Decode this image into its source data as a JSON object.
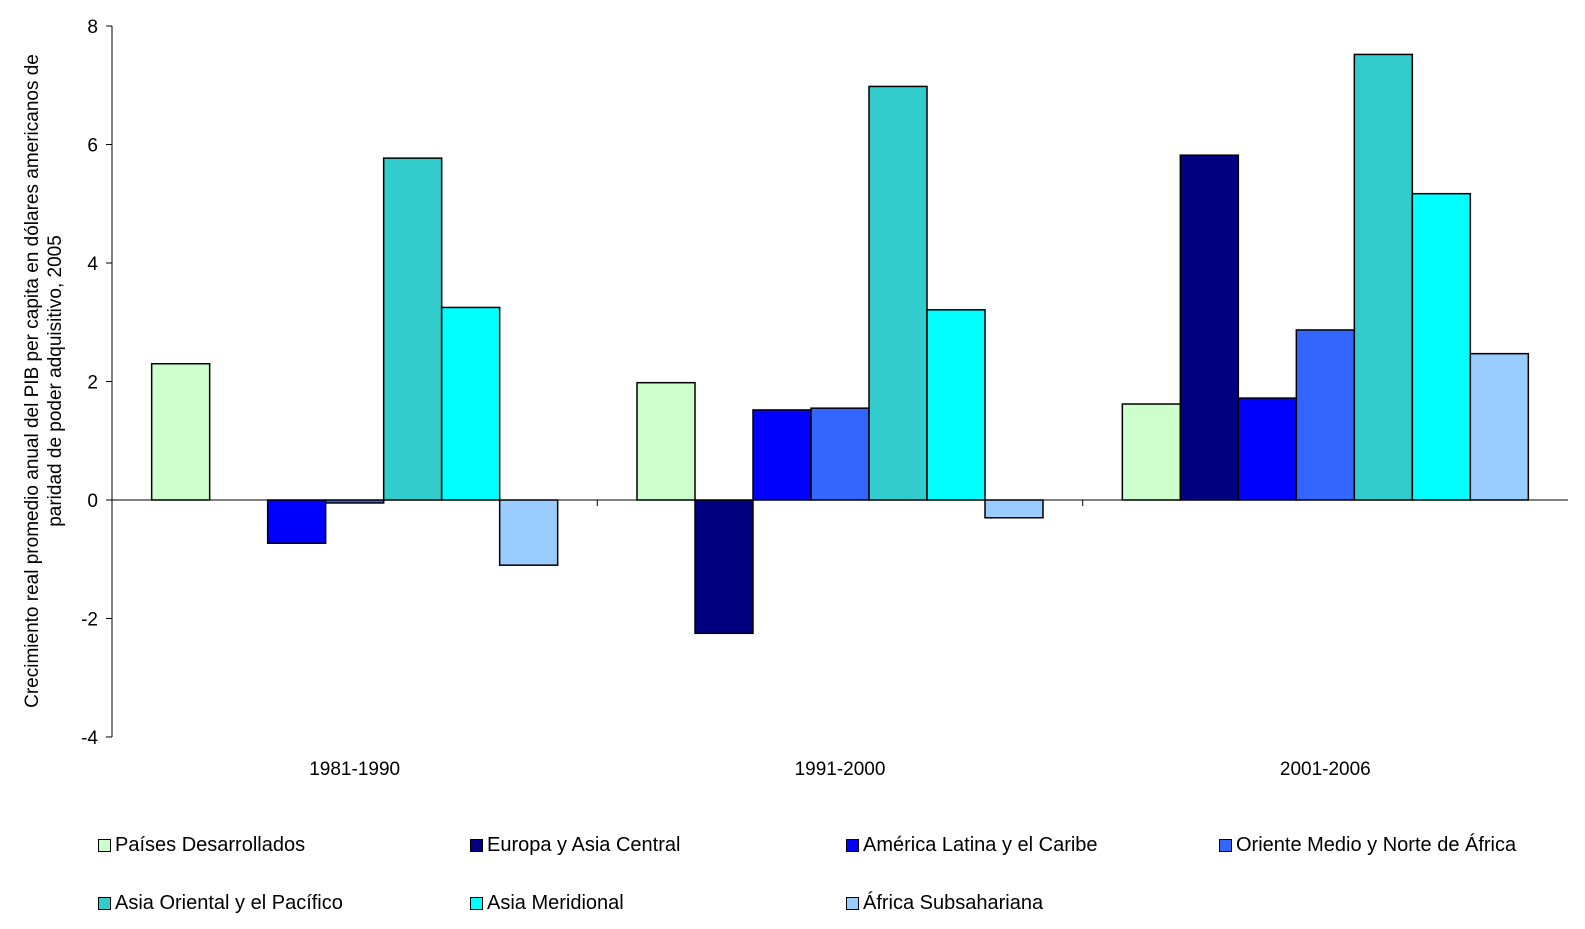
{
  "chart_data": {
    "type": "bar",
    "title": "",
    "xlabel": "",
    "ylabel_lines": [
      "Crecimiento real promedio anual del PIB per capita en dólares americanos de",
      "paridad de poder adquisitivo, 2005"
    ],
    "ylim": [
      -4,
      8
    ],
    "yticks": [
      -4,
      -2,
      0,
      2,
      4,
      6,
      8
    ],
    "grid": false,
    "legend_position": "bottom",
    "categories": [
      "1981-1990",
      "1991-2000",
      "2001-2006"
    ],
    "series": [
      {
        "name": "Países Desarrollados",
        "color": "#CCFFCC",
        "values": [
          2.3,
          1.98,
          1.62
        ]
      },
      {
        "name": "Europa y Asia Central",
        "color": "#000080",
        "values": [
          null,
          -2.25,
          5.82
        ]
      },
      {
        "name": "América Latina y el Caribe",
        "color": "#0000FF",
        "values": [
          -0.73,
          1.52,
          1.72
        ]
      },
      {
        "name": "Oriente Medio y Norte de África",
        "color": "#3366FF",
        "values": [
          -0.05,
          1.55,
          2.87
        ]
      },
      {
        "name": "Asia Oriental y el Pacífico",
        "color": "#33CCCC",
        "values": [
          5.77,
          6.98,
          7.52
        ]
      },
      {
        "name": "Asia Meridional",
        "color": "#00FFFF",
        "values": [
          3.25,
          3.21,
          5.17
        ]
      },
      {
        "name": "África Subsahariana",
        "color": "#99CCFF",
        "values": [
          -1.1,
          -0.3,
          2.47
        ]
      }
    ]
  }
}
